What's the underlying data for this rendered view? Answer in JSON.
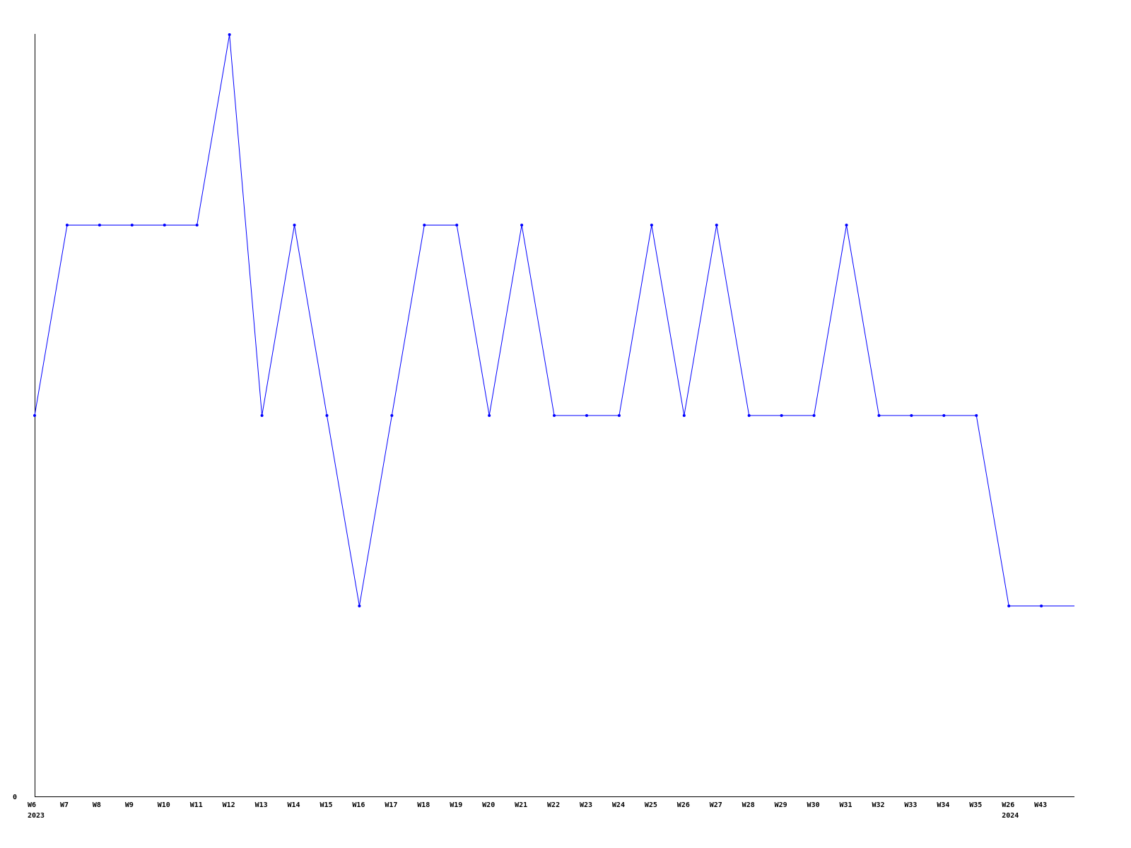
{
  "chart_data": {
    "type": "line",
    "title": "",
    "xlabel": "",
    "ylabel": "",
    "ylim": [
      0,
      4
    ],
    "y_tick_labels": [
      "0"
    ],
    "grid": false,
    "line_color": "#0000ff",
    "categories": [
      "W6",
      "W7",
      "W8",
      "W9",
      "W10",
      "W11",
      "W12",
      "W13",
      "W14",
      "W15",
      "W16",
      "W17",
      "W18",
      "W19",
      "W20",
      "W21",
      "W22",
      "W23",
      "W24",
      "W25",
      "W26",
      "W27",
      "W28",
      "W29",
      "W30",
      "W31",
      "W32",
      "W33",
      "W34",
      "W35",
      "W26",
      "W43"
    ],
    "year_labels": {
      "0": "2023",
      "30": "2024"
    },
    "series": [
      {
        "values": [
          2,
          3,
          3,
          3,
          3,
          3,
          4,
          2,
          3,
          2,
          1,
          2,
          3,
          3,
          2,
          3,
          2,
          2,
          2,
          3,
          2,
          3,
          2,
          2,
          2,
          3,
          2,
          2,
          2,
          2,
          1,
          1
        ]
      }
    ]
  }
}
